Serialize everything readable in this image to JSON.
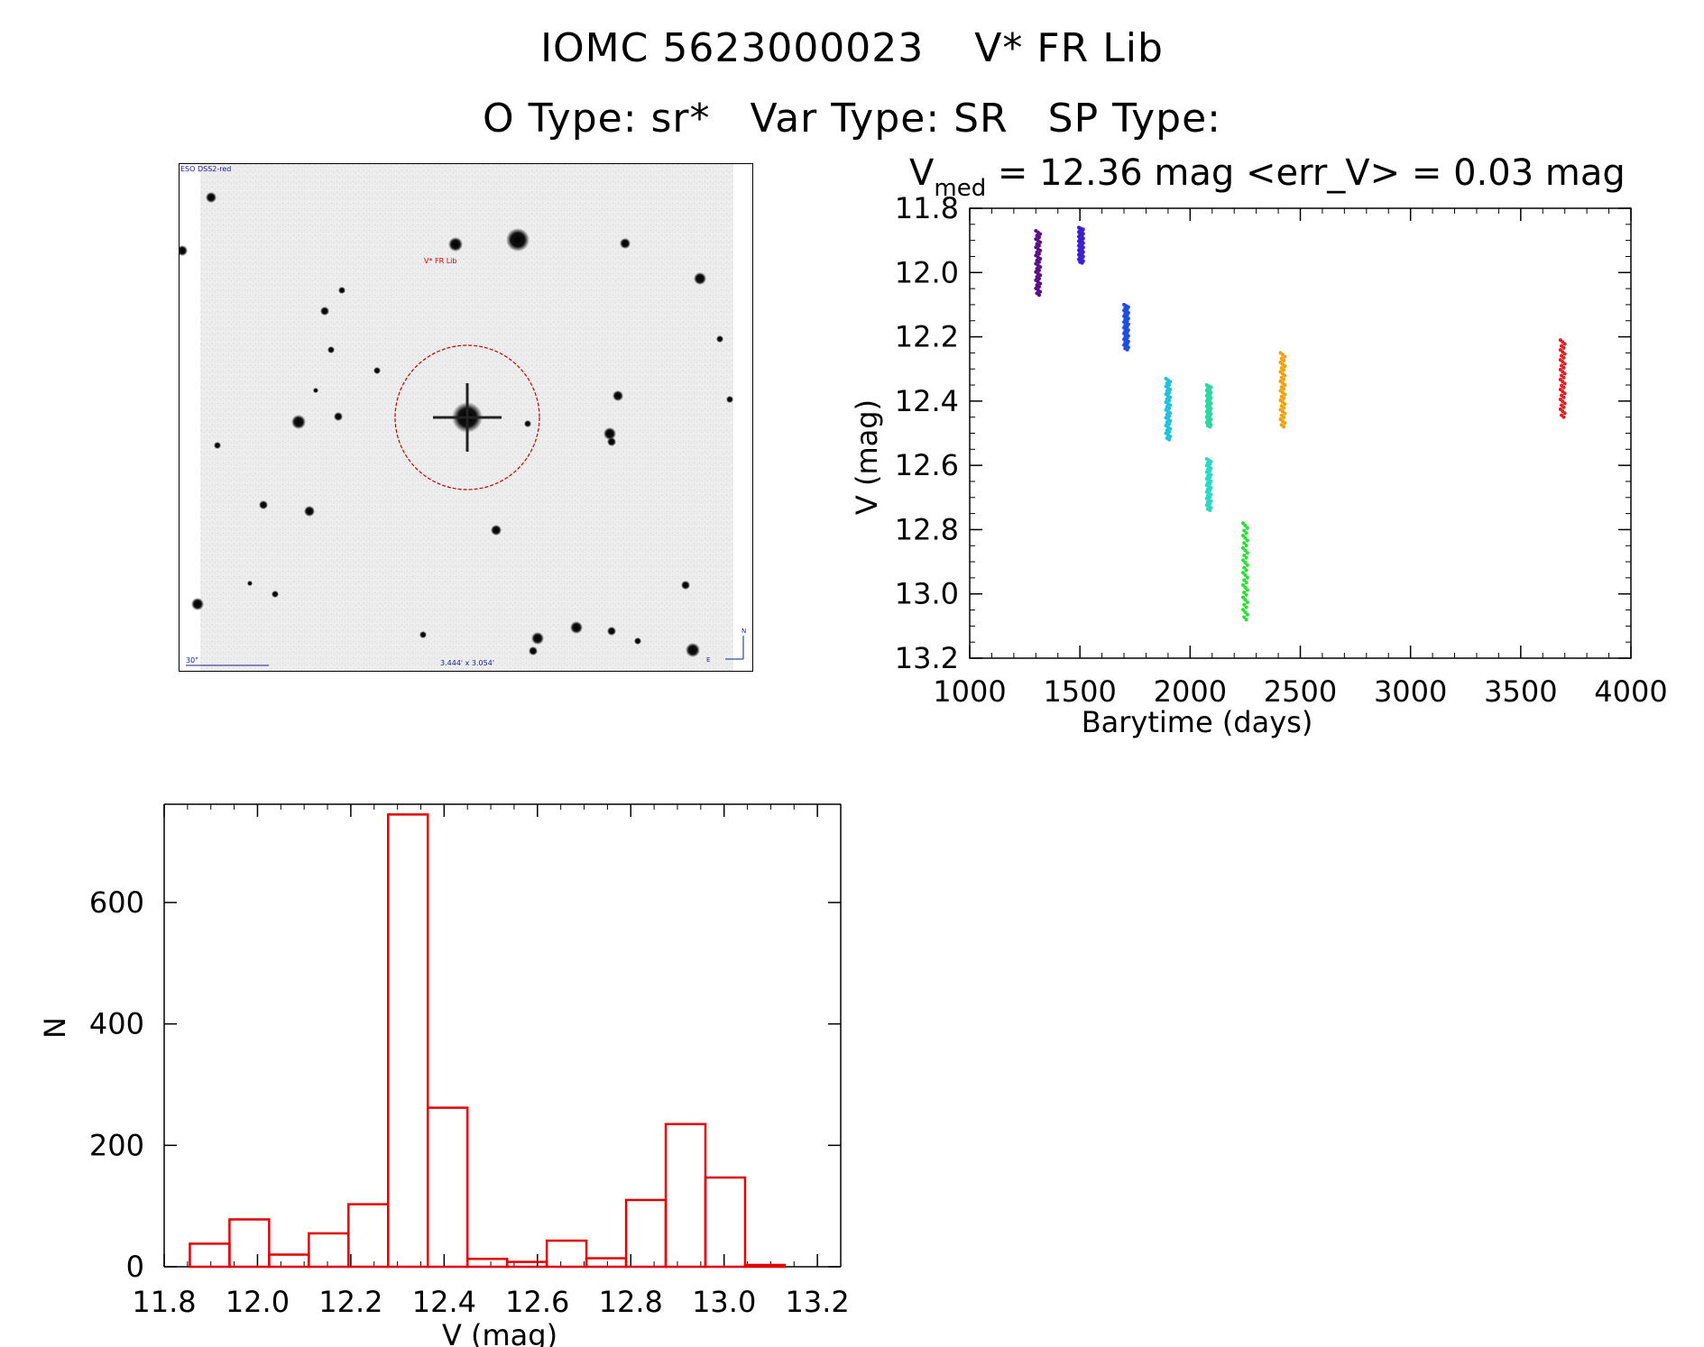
{
  "header": {
    "object_id": "IOMC 5623000023",
    "star_name": "V* FR Lib",
    "o_type": "O Type: sr*",
    "var_type": "Var Type: SR",
    "sp_type": "SP Type:"
  },
  "image_panel": {
    "survey_label": "ESO DSS2-red",
    "target_label": "V* FR Lib",
    "scale_label": "30\"",
    "fov_label": "3.444' x 3.054'",
    "compass_n": "N",
    "compass_e": "E"
  },
  "chart_data": [
    {
      "type": "scatter",
      "title_prefix": "V",
      "title_subscript": "med",
      "title_rest": " = 12.36 mag <err_V> = 0.03 mag",
      "xlabel": "Barytime (days)",
      "ylabel": "V (mag)",
      "xlim": [
        1000,
        4000
      ],
      "ylim": [
        13.2,
        11.8
      ],
      "y_inverted": true,
      "xticks": [
        1000,
        1500,
        2000,
        2500,
        3000,
        3500,
        4000
      ],
      "yticks": [
        "11.8",
        "12.0",
        "12.2",
        "12.4",
        "12.6",
        "12.8",
        "13.0",
        "13.2"
      ],
      "grid": false,
      "clusters": [
        {
          "x": 1310,
          "ymin": 11.87,
          "ymax": 12.07,
          "color": "#5a0a86"
        },
        {
          "x": 1505,
          "ymin": 11.86,
          "ymax": 11.97,
          "color": "#3b20d0"
        },
        {
          "x": 1710,
          "ymin": 12.1,
          "ymax": 12.24,
          "color": "#1e4ee0"
        },
        {
          "x": 1900,
          "ymin": 12.33,
          "ymax": 12.52,
          "color": "#1fc0e0"
        },
        {
          "x": 2085,
          "ymin": 12.35,
          "ymax": 12.48,
          "color": "#2ed8a0"
        },
        {
          "x": 2085,
          "ymin": 12.58,
          "ymax": 12.74,
          "color": "#2ed8c8"
        },
        {
          "x": 2250,
          "ymin": 12.78,
          "ymax": 13.08,
          "color": "#28e030"
        },
        {
          "x": 2420,
          "ymin": 12.25,
          "ymax": 12.48,
          "color": "#f0a000"
        },
        {
          "x": 3690,
          "ymin": 12.21,
          "ymax": 12.45,
          "color": "#e02020"
        }
      ]
    },
    {
      "type": "bar",
      "xlabel": "V (mag)",
      "ylabel": "N",
      "xlim": [
        11.8,
        13.25
      ],
      "ylim": [
        0,
        750
      ],
      "xticks": [
        "11.8",
        "12.0",
        "12.2",
        "12.4",
        "12.6",
        "12.8",
        "13.0",
        "13.2"
      ],
      "yticks": [
        "0",
        "200",
        "400",
        "600"
      ],
      "bin_width": 0.085,
      "bin_edges_start": 11.855,
      "values": [
        38,
        78,
        20,
        55,
        103,
        745,
        262,
        13,
        8,
        43,
        14,
        110,
        235,
        147,
        3
      ],
      "color": "#e00000"
    }
  ]
}
